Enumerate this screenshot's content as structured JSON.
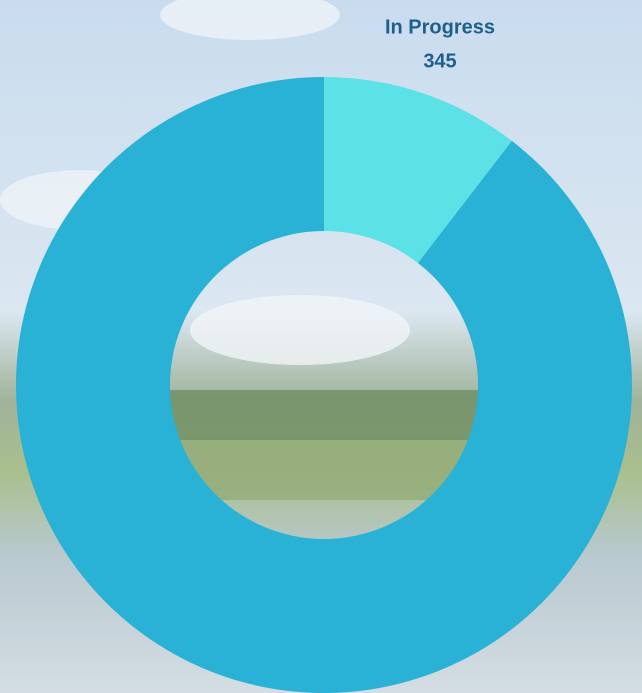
{
  "chart_data": {
    "type": "donut",
    "categories": [
      "In Progress",
      null
    ],
    "values": [
      345,
      2960
    ],
    "colors": [
      "#5ce1e6",
      "#29b2d5"
    ]
  }
}
